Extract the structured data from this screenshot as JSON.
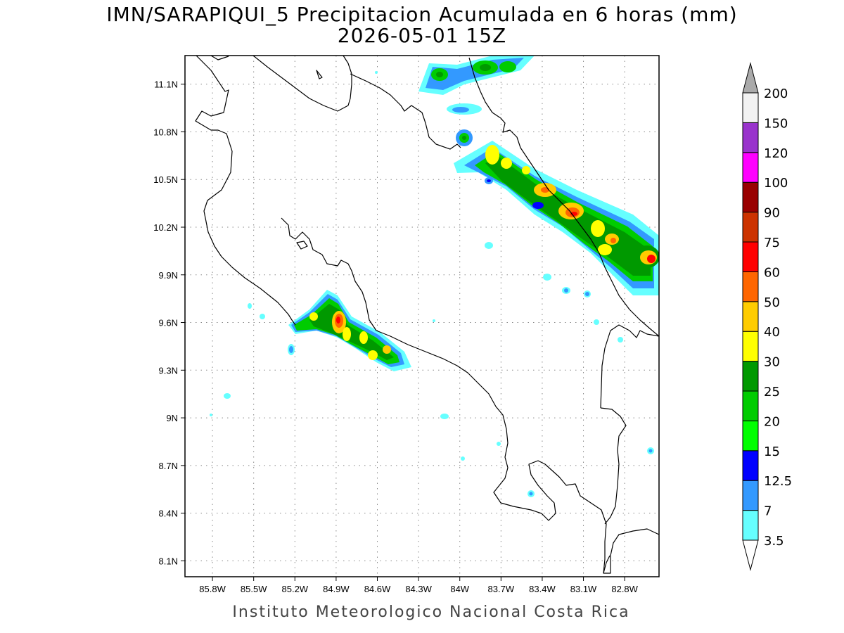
{
  "title": {
    "line1": "IMN/SARAPIQUI_5 Precipitacion Acumulada en 6 horas (mm)",
    "line2": "2026-05-01 15Z"
  },
  "credit": "Instituto Meteorologico Nacional Costa Rica",
  "map": {
    "lon_range": [
      -86.0,
      -82.55
    ],
    "lat_range": [
      8.0,
      11.28
    ],
    "lon_ticks": [
      {
        "value": -85.8,
        "label": "85.8W"
      },
      {
        "value": -85.5,
        "label": "85.5W"
      },
      {
        "value": -85.2,
        "label": "85.2W"
      },
      {
        "value": -84.9,
        "label": "84.9W"
      },
      {
        "value": -84.6,
        "label": "84.6W"
      },
      {
        "value": -84.3,
        "label": "84.3W"
      },
      {
        "value": -84.0,
        "label": "84W"
      },
      {
        "value": -83.7,
        "label": "83.7W"
      },
      {
        "value": -83.4,
        "label": "83.4W"
      },
      {
        "value": -83.1,
        "label": "83.1W"
      },
      {
        "value": -82.8,
        "label": "82.8W"
      }
    ],
    "lat_ticks": [
      {
        "value": 11.1,
        "label": "11.1N"
      },
      {
        "value": 10.8,
        "label": "10.8N"
      },
      {
        "value": 10.5,
        "label": "10.5N"
      },
      {
        "value": 10.2,
        "label": "10.2N"
      },
      {
        "value": 9.9,
        "label": "9.9N"
      },
      {
        "value": 9.6,
        "label": "9.6N"
      },
      {
        "value": 9.3,
        "label": "9.3N"
      },
      {
        "value": 9.0,
        "label": "9N"
      },
      {
        "value": 8.7,
        "label": "8.7N"
      },
      {
        "value": 8.4,
        "label": "8.4N"
      },
      {
        "value": 8.1,
        "label": "8.1N"
      }
    ],
    "grid": true
  },
  "colorbar": {
    "levels": [
      {
        "label": "3.5",
        "color": "#66ffff"
      },
      {
        "label": "7",
        "color": "#3399ff"
      },
      {
        "label": "12.5",
        "color": "#0000ff"
      },
      {
        "label": "15",
        "color": "#00ff00"
      },
      {
        "label": "20",
        "color": "#00cc00"
      },
      {
        "label": "25",
        "color": "#009900"
      },
      {
        "label": "30",
        "color": "#ffff00"
      },
      {
        "label": "40",
        "color": "#ffcc00"
      },
      {
        "label": "50",
        "color": "#ff6600"
      },
      {
        "label": "60",
        "color": "#ff0000"
      },
      {
        "label": "75",
        "color": "#cc3300"
      },
      {
        "label": "90",
        "color": "#990000"
      },
      {
        "label": "100",
        "color": "#ff00ff"
      },
      {
        "label": "120",
        "color": "#9933cc"
      },
      {
        "label": "150",
        "color": "#f2f2f2"
      },
      {
        "label": "200",
        "color": "#aaaaaa"
      }
    ],
    "upper_arrow_color": "#aaaaaa",
    "lower_arrow_color": "#ffffff"
  }
}
